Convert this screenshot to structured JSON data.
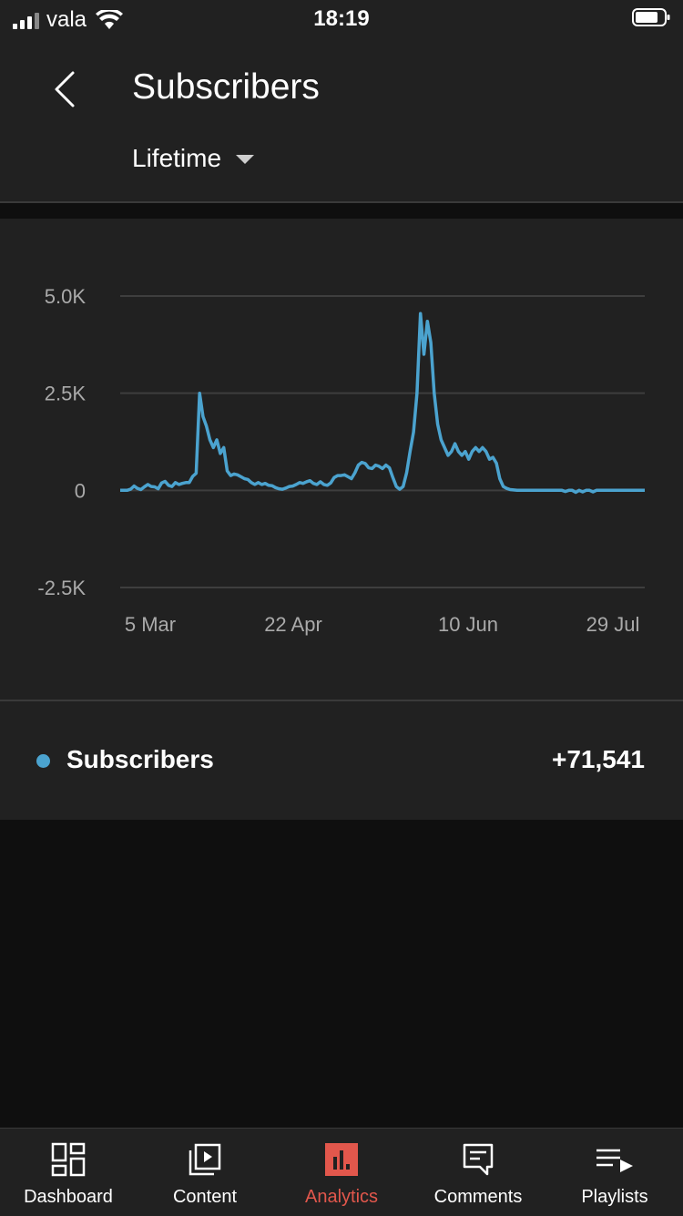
{
  "status_bar": {
    "carrier": "vala",
    "time": "18:19"
  },
  "header": {
    "title": "Subscribers",
    "period": "Lifetime"
  },
  "chart_data": {
    "type": "line",
    "title": "",
    "xlabel": "",
    "ylabel": "",
    "y_ticks": [
      "5.0K",
      "2.5K",
      "0",
      "-2.5K"
    ],
    "x_ticks": [
      "5 Mar",
      "22 Apr",
      "10 Jun",
      "29 Jul"
    ],
    "ylim": [
      -2500,
      5000
    ],
    "grid": true,
    "line_color": "#4ba3cf",
    "series": [
      {
        "values": [
          0,
          0,
          0,
          30,
          110,
          50,
          20,
          90,
          150,
          100,
          90,
          40,
          190,
          230,
          130,
          100,
          200,
          150,
          180,
          200,
          200,
          360,
          440,
          2500,
          1900,
          1650,
          1300,
          1100,
          1300,
          950,
          1100,
          500,
          380,
          420,
          400,
          350,
          300,
          280,
          200,
          150,
          200,
          150,
          180,
          130,
          120,
          70,
          40,
          30,
          60,
          100,
          110,
          150,
          200,
          180,
          220,
          250,
          180,
          150,
          220,
          150,
          130,
          190,
          330,
          380,
          380,
          400,
          350,
          300,
          450,
          650,
          720,
          690,
          580,
          560,
          650,
          620,
          560,
          650,
          580,
          330,
          100,
          30,
          100,
          450,
          1000,
          1500,
          2500,
          4550,
          3500,
          4350,
          3800,
          2500,
          1700,
          1300,
          1100,
          900,
          1000,
          1200,
          1000,
          900,
          1000,
          800,
          1000,
          1100,
          1000,
          1100,
          1000,
          800,
          850,
          700,
          300,
          100,
          50,
          20,
          10,
          0,
          0,
          0,
          0,
          0,
          0,
          0,
          0,
          0,
          0,
          0,
          0,
          0,
          0,
          -30,
          0,
          0,
          -50,
          0,
          -40,
          0,
          0,
          -40,
          0,
          0,
          0,
          0,
          0,
          0,
          0,
          0,
          0,
          0,
          0,
          0,
          0,
          0,
          0
        ]
      }
    ]
  },
  "legend": {
    "label": "Subscribers",
    "value": "+71,541",
    "color": "#4ba3cf"
  },
  "nav": {
    "items": [
      {
        "label": "Dashboard",
        "icon": "dashboard-icon",
        "active": false
      },
      {
        "label": "Content",
        "icon": "content-icon",
        "active": false
      },
      {
        "label": "Analytics",
        "icon": "analytics-icon",
        "active": true
      },
      {
        "label": "Comments",
        "icon": "comments-icon",
        "active": false
      },
      {
        "label": "Playlists",
        "icon": "playlists-icon",
        "active": false
      }
    ]
  }
}
